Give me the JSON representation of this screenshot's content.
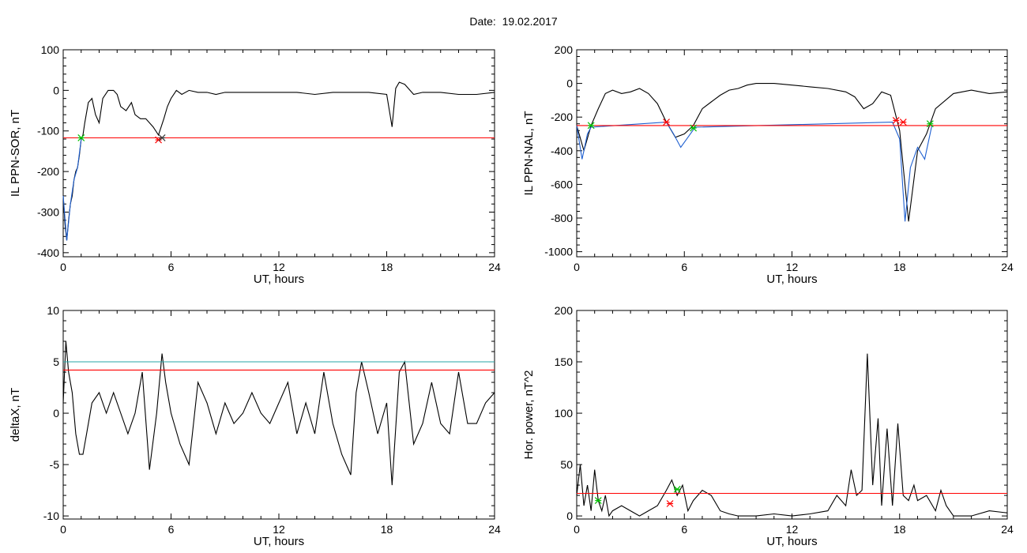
{
  "header": {
    "date_label": "Date:",
    "date_value": "19.02.2017"
  },
  "chart_data": [
    {
      "type": "line",
      "ylabel": "IL PPN-SOR, nT",
      "xlabel": "UT, hours",
      "xlim": [
        0,
        24
      ],
      "ylim": [
        -410,
        100
      ],
      "xticks": [
        0,
        6,
        12,
        18,
        24
      ],
      "yticks": [
        100,
        0,
        -100,
        -200,
        -300,
        -400
      ],
      "series": [
        {
          "color": "#000000",
          "x": [
            0,
            0.1,
            0.2,
            0.3,
            0.4,
            0.5,
            0.6,
            0.7,
            0.8,
            0.9,
            1.0,
            1.1,
            1.2,
            1.4,
            1.6,
            1.8,
            2.0,
            2.2,
            2.5,
            2.8,
            3.0,
            3.2,
            3.5,
            3.8,
            4.0,
            4.3,
            4.6,
            5.0,
            5.3,
            5.6,
            5.8,
            6.0,
            6.3,
            6.6,
            7.0,
            7.5,
            8.0,
            8.5,
            9.0,
            10,
            11,
            12,
            13,
            14,
            15,
            16,
            17,
            18.0,
            18.3,
            18.5,
            18.7,
            19.0,
            19.5,
            20,
            21,
            22,
            23,
            24
          ],
          "y": [
            -260,
            -330,
            -370,
            -320,
            -280,
            -260,
            -220,
            -200,
            -190,
            -160,
            -120,
            -110,
            -80,
            -30,
            -20,
            -60,
            -80,
            -20,
            0,
            0,
            -10,
            -40,
            -50,
            -30,
            -60,
            -70,
            -70,
            -90,
            -110,
            -70,
            -40,
            -20,
            0,
            -10,
            0,
            -5,
            -5,
            -10,
            -5,
            -5,
            -5,
            -5,
            -5,
            -10,
            -5,
            -5,
            -5,
            -10,
            -90,
            5,
            20,
            15,
            -10,
            -5,
            -5,
            -10,
            -10,
            -5
          ]
        },
        {
          "color": "#1e5fd0",
          "x": [
            0,
            0.2,
            0.4,
            0.6,
            0.8,
            1.0
          ],
          "y": [
            -260,
            -370,
            -280,
            -220,
            -190,
            -120
          ]
        },
        {
          "color": "#ff0000",
          "x": [
            0,
            24
          ],
          "y": [
            -117,
            -117
          ]
        }
      ],
      "markers": [
        {
          "color": "#00c000",
          "x": 1.0,
          "y": -117
        },
        {
          "color": "#ff0000",
          "x": 5.3,
          "y": -122
        },
        {
          "color": "#3a3a3a",
          "x": 5.5,
          "y": -117
        }
      ]
    },
    {
      "type": "line",
      "ylabel": "IL PPN-NAL, nT",
      "xlabel": "UT, hours",
      "xlim": [
        0,
        24
      ],
      "ylim": [
        -1030,
        200
      ],
      "xticks": [
        0,
        6,
        12,
        18,
        24
      ],
      "yticks": [
        200,
        0,
        -200,
        -400,
        -600,
        -800,
        -1000
      ],
      "series": [
        {
          "color": "#000000",
          "x": [
            0,
            0.4,
            0.8,
            1.2,
            1.6,
            2.0,
            2.5,
            3.0,
            3.5,
            4.0,
            4.5,
            5.0,
            5.5,
            6.0,
            6.5,
            7.0,
            7.5,
            8.0,
            8.5,
            9.0,
            9.5,
            10,
            11,
            12,
            13,
            14,
            15,
            15.5,
            16,
            16.5,
            17,
            17.5,
            18,
            18.5,
            19,
            19.5,
            20,
            21,
            22,
            23,
            24
          ],
          "y": [
            -250,
            -400,
            -250,
            -150,
            -60,
            -40,
            -60,
            -50,
            -30,
            -60,
            -120,
            -230,
            -320,
            -300,
            -250,
            -150,
            -110,
            -70,
            -40,
            -30,
            -10,
            0,
            0,
            -10,
            -20,
            -30,
            -50,
            -80,
            -150,
            -120,
            -50,
            -70,
            -280,
            -820,
            -400,
            -300,
            -150,
            -60,
            -40,
            -60,
            -50
          ]
        },
        {
          "color": "#1e5fd0",
          "x": [
            0,
            0.3,
            0.6,
            0.8,
            5.0,
            5.4,
            5.8,
            6.2,
            6.6,
            17.6,
            18.0,
            18.3,
            18.6,
            19.0,
            19.4,
            19.8
          ],
          "y": [
            -250,
            -450,
            -300,
            -260,
            -230,
            -300,
            -380,
            -320,
            -260,
            -230,
            -330,
            -820,
            -500,
            -380,
            -450,
            -250
          ]
        },
        {
          "color": "#ff0000",
          "x": [
            0,
            24
          ],
          "y": [
            -250,
            -250
          ]
        }
      ],
      "markers": [
        {
          "color": "#00c000",
          "x": 0.8,
          "y": -250
        },
        {
          "color": "#ff0000",
          "x": 5.0,
          "y": -230
        },
        {
          "color": "#00c000",
          "x": 6.5,
          "y": -265
        },
        {
          "color": "#ff0000",
          "x": 17.8,
          "y": -220
        },
        {
          "color": "#ff0000",
          "x": 18.2,
          "y": -230
        },
        {
          "color": "#00c000",
          "x": 19.7,
          "y": -240
        }
      ]
    },
    {
      "type": "line",
      "ylabel": "deltaX, nT",
      "xlabel": "UT, hours",
      "xlim": [
        0,
        24
      ],
      "ylim": [
        -10.3,
        10
      ],
      "xticks": [
        0,
        6,
        12,
        18,
        24
      ],
      "yticks": [
        10,
        5,
        0,
        -5,
        -10
      ],
      "series": [
        {
          "color": "#000000",
          "x": [
            0,
            0.15,
            0.3,
            0.5,
            0.7,
            0.9,
            1.1,
            1.3,
            1.6,
            2.0,
            2.4,
            2.8,
            3.2,
            3.6,
            4.0,
            4.4,
            4.8,
            5.2,
            5.5,
            5.7,
            6.0,
            6.5,
            7.0,
            7.5,
            8.0,
            8.5,
            9.0,
            9.5,
            10,
            10.5,
            11,
            11.5,
            12,
            12.5,
            13,
            13.5,
            14,
            14.5,
            15,
            15.5,
            16,
            16.3,
            16.6,
            17,
            17.5,
            18,
            18.3,
            18.7,
            19,
            19.5,
            20,
            20.5,
            21,
            21.5,
            22,
            22.5,
            23,
            23.5,
            24
          ],
          "y": [
            1,
            7,
            4,
            2,
            -2,
            -4,
            -4,
            -2,
            1,
            2,
            0,
            2,
            0,
            -2,
            0,
            4,
            -5.5,
            0,
            5.8,
            3,
            0,
            -3,
            -5,
            3,
            1,
            -2,
            1,
            -1,
            0,
            2,
            0,
            -1,
            1,
            3,
            -2,
            1,
            -2,
            4,
            -1,
            -4,
            -6,
            2,
            5,
            2,
            -2,
            1,
            -7,
            4,
            5,
            -3,
            -1,
            3,
            -1,
            -2,
            4,
            -1,
            -1,
            1,
            2
          ]
        },
        {
          "color": "#ff0000",
          "x": [
            0,
            24
          ],
          "y": [
            4.2,
            4.2
          ]
        },
        {
          "color": "#2aa6a6",
          "x": [
            0,
            24
          ],
          "y": [
            5.0,
            5.0
          ]
        }
      ],
      "markers": []
    },
    {
      "type": "line",
      "ylabel": "Hor. power, nT^2",
      "xlabel": "UT, hours",
      "xlim": [
        0,
        24
      ],
      "ylim": [
        -3,
        200
      ],
      "xticks": [
        0,
        6,
        12,
        18,
        24
      ],
      "yticks": [
        200,
        150,
        100,
        50,
        0
      ],
      "series": [
        {
          "color": "#000000",
          "x": [
            0,
            0.2,
            0.4,
            0.6,
            0.8,
            1.0,
            1.2,
            1.4,
            1.6,
            1.8,
            2.0,
            2.5,
            3.0,
            3.5,
            4.0,
            4.5,
            5.0,
            5.3,
            5.6,
            5.9,
            6.2,
            6.5,
            7.0,
            7.5,
            8.0,
            8.5,
            9.0,
            10,
            11,
            12,
            13,
            14,
            14.5,
            15,
            15.3,
            15.6,
            15.9,
            16.2,
            16.5,
            16.8,
            17.0,
            17.3,
            17.6,
            17.9,
            18.2,
            18.5,
            18.8,
            19,
            19.5,
            20,
            20.3,
            20.6,
            21,
            22,
            23,
            24
          ],
          "y": [
            20,
            50,
            10,
            30,
            5,
            45,
            15,
            5,
            20,
            0,
            5,
            10,
            5,
            0,
            5,
            10,
            25,
            35,
            20,
            30,
            5,
            15,
            25,
            20,
            5,
            2,
            0,
            0,
            2,
            0,
            2,
            5,
            20,
            10,
            45,
            20,
            25,
            158,
            30,
            95,
            10,
            85,
            10,
            90,
            20,
            15,
            30,
            15,
            20,
            5,
            25,
            10,
            0,
            0,
            5,
            3
          ]
        },
        {
          "color": "#ff0000",
          "x": [
            0,
            24
          ],
          "y": [
            22,
            22
          ]
        }
      ],
      "markers": [
        {
          "color": "#00c000",
          "x": 1.2,
          "y": 15
        },
        {
          "color": "#ff0000",
          "x": 5.2,
          "y": 12
        },
        {
          "color": "#00c000",
          "x": 5.6,
          "y": 26
        }
      ]
    }
  ]
}
